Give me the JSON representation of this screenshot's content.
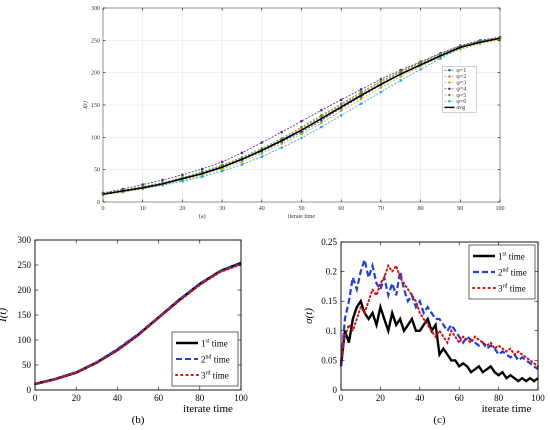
{
  "chart_data": [
    {
      "type": "line",
      "panel_label": "(a)",
      "xlabel": "iterate time",
      "ylabel": "I(t)",
      "xlim": [
        0,
        100
      ],
      "ylim": [
        0,
        300
      ],
      "xticks": [
        0,
        10,
        20,
        30,
        40,
        50,
        60,
        70,
        80,
        90,
        100
      ],
      "yticks": [
        0,
        50,
        100,
        150,
        200,
        250,
        300
      ],
      "grid": true,
      "legend_position": "right",
      "x": [
        0,
        5,
        10,
        15,
        20,
        25,
        30,
        35,
        40,
        45,
        50,
        55,
        60,
        65,
        70,
        75,
        80,
        85,
        90,
        95,
        100
      ],
      "series": [
        {
          "name": "φ=1",
          "color": "#1f3fbf",
          "marker": "circle",
          "values": [
            12,
            17,
            22,
            28,
            35,
            43,
            53,
            65,
            78,
            93,
            108,
            126,
            145,
            163,
            181,
            198,
            213,
            227,
            240,
            248,
            254
          ]
        },
        {
          "name": "φ=2",
          "color": "#e07020",
          "marker": "circle",
          "values": [
            13,
            18,
            23,
            29,
            36,
            45,
            56,
            67,
            81,
            96,
            114,
            132,
            150,
            168,
            185,
            201,
            215,
            229,
            241,
            249,
            253
          ]
        },
        {
          "name": "φ=3",
          "color": "#c8b000",
          "marker": "circle",
          "values": [
            11,
            15,
            20,
            26,
            33,
            41,
            51,
            62,
            75,
            90,
            105,
            122,
            141,
            159,
            177,
            194,
            210,
            224,
            236,
            245,
            250
          ]
        },
        {
          "name": "φ=4",
          "color": "#5a1a8a",
          "marker": "circle",
          "values": [
            14,
            20,
            27,
            34,
            42,
            51,
            62,
            76,
            92,
            108,
            125,
            142,
            158,
            174,
            190,
            204,
            217,
            230,
            242,
            250,
            255
          ]
        },
        {
          "name": "φ=5",
          "color": "#3a9a30",
          "marker": "circle",
          "values": [
            13,
            18,
            24,
            30,
            38,
            47,
            57,
            69,
            83,
            98,
            116,
            134,
            152,
            170,
            187,
            202,
            216,
            229,
            241,
            249,
            254
          ]
        },
        {
          "name": "φ=6",
          "color": "#20a8e0",
          "marker": "circle",
          "values": [
            12,
            16,
            21,
            26,
            32,
            39,
            48,
            58,
            70,
            84,
            99,
            116,
            134,
            152,
            170,
            188,
            205,
            222,
            238,
            248,
            253
          ]
        },
        {
          "name": "avg",
          "color": "#000000",
          "marker": "none",
          "values": [
            12,
            17,
            22,
            28,
            36,
            44,
            54,
            66,
            80,
            95,
            111,
            129,
            147,
            165,
            182,
            198,
            212,
            226,
            239,
            247,
            253
          ]
        }
      ]
    },
    {
      "type": "line",
      "panel_label": "(b)",
      "xlabel": "iterate time",
      "ylabel": "I(t)",
      "xlim": [
        0,
        100
      ],
      "ylim": [
        0,
        300
      ],
      "xticks": [
        0,
        20,
        40,
        60,
        80,
        100
      ],
      "yticks": [
        0,
        50,
        100,
        150,
        200,
        250,
        300
      ],
      "legend_position": "bottom-right",
      "x": [
        0,
        10,
        20,
        30,
        40,
        50,
        60,
        70,
        80,
        90,
        100
      ],
      "series": [
        {
          "name": "1st time",
          "sup": "st",
          "base": "1",
          "style": "solid",
          "color": "#000000",
          "values": [
            12,
            22,
            35,
            55,
            80,
            110,
            145,
            180,
            212,
            238,
            254
          ]
        },
        {
          "name": "2nd time",
          "sup": "nd",
          "base": "2",
          "style": "dashed",
          "color": "#1f3fd8",
          "values": [
            12,
            22,
            36,
            56,
            82,
            112,
            146,
            181,
            213,
            238,
            253
          ]
        },
        {
          "name": "3rd time",
          "sup": "rd",
          "base": "3",
          "style": "dotted",
          "color": "#d01010",
          "values": [
            12,
            21,
            35,
            54,
            79,
            109,
            144,
            178,
            210,
            236,
            251
          ]
        }
      ]
    },
    {
      "type": "line",
      "panel_label": "(c)",
      "xlabel": "iterate time",
      "ylabel": "σ(t)",
      "xlim": [
        0,
        100
      ],
      "ylim": [
        0,
        0.25
      ],
      "xticks": [
        0,
        20,
        40,
        60,
        80,
        100
      ],
      "yticks": [
        0,
        0.05,
        0.1,
        0.15,
        0.2,
        0.25
      ],
      "legend_position": "top-right",
      "x": [
        0,
        2,
        4,
        6,
        8,
        10,
        12,
        14,
        16,
        18,
        20,
        22,
        24,
        26,
        28,
        30,
        32,
        34,
        36,
        38,
        40,
        42,
        44,
        46,
        48,
        50,
        52,
        54,
        56,
        58,
        60,
        62,
        64,
        66,
        68,
        70,
        72,
        74,
        76,
        78,
        80,
        82,
        84,
        86,
        88,
        90,
        92,
        94,
        96,
        98,
        100
      ],
      "series": [
        {
          "name": "1st time",
          "sup": "st",
          "base": "1",
          "style": "solid",
          "color": "#000000",
          "values": [
            0.04,
            0.1,
            0.08,
            0.12,
            0.14,
            0.15,
            0.13,
            0.12,
            0.13,
            0.11,
            0.14,
            0.12,
            0.1,
            0.13,
            0.11,
            0.12,
            0.1,
            0.11,
            0.12,
            0.1,
            0.1,
            0.11,
            0.12,
            0.1,
            0.11,
            0.06,
            0.07,
            0.06,
            0.05,
            0.05,
            0.04,
            0.045,
            0.04,
            0.03,
            0.035,
            0.04,
            0.03,
            0.035,
            0.04,
            0.03,
            0.025,
            0.03,
            0.02,
            0.025,
            0.02,
            0.015,
            0.02,
            0.015,
            0.02,
            0.015,
            0.02
          ]
        },
        {
          "name": "2nd time",
          "sup": "nd",
          "base": "2",
          "style": "dashed",
          "color": "#1f3fd8",
          "values": [
            0.04,
            0.12,
            0.15,
            0.19,
            0.17,
            0.2,
            0.22,
            0.19,
            0.21,
            0.18,
            0.17,
            0.19,
            0.16,
            0.18,
            0.16,
            0.2,
            0.17,
            0.15,
            0.16,
            0.14,
            0.15,
            0.13,
            0.14,
            0.13,
            0.12,
            0.12,
            0.11,
            0.1,
            0.11,
            0.1,
            0.09,
            0.08,
            0.09,
            0.085,
            0.08,
            0.075,
            0.08,
            0.07,
            0.075,
            0.07,
            0.06,
            0.065,
            0.06,
            0.055,
            0.06,
            0.05,
            0.055,
            0.05,
            0.045,
            0.04,
            0.035
          ]
        },
        {
          "name": "3rd time",
          "sup": "rd",
          "base": "3",
          "style": "dotted",
          "color": "#d01010",
          "values": [
            0.05,
            0.09,
            0.11,
            0.1,
            0.12,
            0.14,
            0.13,
            0.15,
            0.17,
            0.16,
            0.18,
            0.19,
            0.21,
            0.2,
            0.21,
            0.19,
            0.18,
            0.17,
            0.16,
            0.15,
            0.13,
            0.12,
            0.11,
            0.1,
            0.09,
            0.1,
            0.09,
            0.08,
            0.1,
            0.09,
            0.08,
            0.09,
            0.085,
            0.08,
            0.09,
            0.085,
            0.08,
            0.075,
            0.08,
            0.07,
            0.075,
            0.07,
            0.065,
            0.07,
            0.06,
            0.065,
            0.06,
            0.055,
            0.05,
            0.045,
            0.04
          ]
        }
      ]
    }
  ]
}
